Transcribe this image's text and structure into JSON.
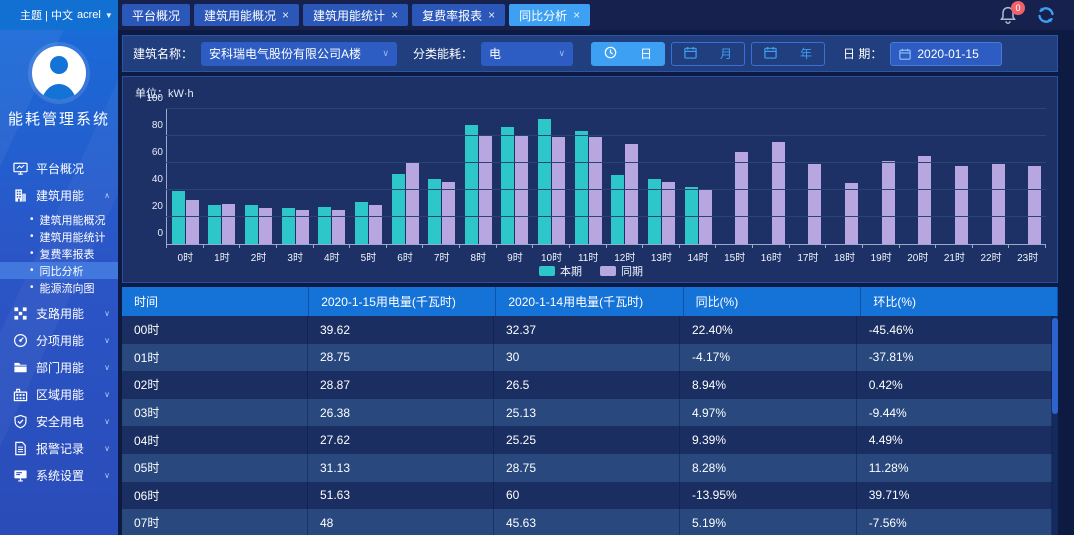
{
  "topbar": {
    "theme_label": "主题 | 中文",
    "user_label": "acrel",
    "bell_badge": "0",
    "tabs": [
      {
        "label": "平台概况",
        "closable": false,
        "active": false
      },
      {
        "label": "建筑用能概况",
        "closable": true,
        "active": false
      },
      {
        "label": "建筑用能统计",
        "closable": true,
        "active": false
      },
      {
        "label": "复费率报表",
        "closable": true,
        "active": false
      },
      {
        "label": "同比分析",
        "closable": true,
        "active": true
      }
    ]
  },
  "sidebar": {
    "title": "能耗管理系统",
    "menu": [
      {
        "label": "平台概况",
        "icon": "monitor-icon",
        "chevron": "none"
      },
      {
        "label": "建筑用能",
        "icon": "building-icon",
        "chevron": "up",
        "children": [
          {
            "label": "建筑用能概况",
            "active": false
          },
          {
            "label": "建筑用能统计",
            "active": false
          },
          {
            "label": "复费率报表",
            "active": false
          },
          {
            "label": "同比分析",
            "active": true
          },
          {
            "label": "能源流向图",
            "active": false
          }
        ]
      },
      {
        "label": "支路用能",
        "icon": "branch-icon",
        "chevron": "down"
      },
      {
        "label": "分项用能",
        "icon": "gauge-icon",
        "chevron": "down"
      },
      {
        "label": "部门用能",
        "icon": "folder-icon",
        "chevron": "down"
      },
      {
        "label": "区域用能",
        "icon": "factory-icon",
        "chevron": "down"
      },
      {
        "label": "安全用电",
        "icon": "shield-icon",
        "chevron": "down"
      },
      {
        "label": "报警记录",
        "icon": "document-icon",
        "chevron": "down"
      },
      {
        "label": "系统设置",
        "icon": "settings-icon",
        "chevron": "down"
      }
    ]
  },
  "filters": {
    "building_label": "建筑名称：",
    "building_value": "安科瑞电气股份有限公司A楼",
    "energy_label": "分类能耗：",
    "energy_value": "电",
    "period_buttons": [
      {
        "label": "日",
        "icon": "clock-icon",
        "active": true
      },
      {
        "label": "月",
        "icon": "calendar-icon",
        "active": false
      },
      {
        "label": "年",
        "icon": "calendar-icon",
        "active": false
      }
    ],
    "date_label": "日 期：",
    "date_value": "2020-01-15"
  },
  "chart_data": {
    "type": "bar",
    "unit_label": "单位：kW·h",
    "categories": [
      "0时",
      "1时",
      "2时",
      "3时",
      "4时",
      "5时",
      "6时",
      "7时",
      "8时",
      "9时",
      "10时",
      "11时",
      "12时",
      "13时",
      "14时",
      "15时",
      "16时",
      "17时",
      "18时",
      "19时",
      "20时",
      "21时",
      "22时",
      "23时"
    ],
    "series": [
      {
        "name": "本期",
        "color": "#2ec7c9",
        "values": [
          39.62,
          28.75,
          28.87,
          26.38,
          27.62,
          31.13,
          51.63,
          48,
          88,
          86.5,
          92.5,
          84,
          51,
          48,
          42.5
        ]
      },
      {
        "name": "同期",
        "color": "#b7a6e0",
        "values": [
          32.37,
          30,
          26.5,
          25.13,
          25.25,
          28.75,
          60,
          45.63,
          80,
          80,
          79.5,
          79,
          74,
          46,
          41,
          68.5,
          75.5,
          59.5,
          45.5,
          61.5,
          65,
          57.5,
          59.5,
          57.5
        ]
      }
    ],
    "ylim": [
      0,
      100
    ],
    "yticks": [
      0,
      20,
      40,
      60,
      80,
      100
    ],
    "grid": true,
    "legend_position": "bottom"
  },
  "table": {
    "columns": [
      "时间",
      "2020-1-15用电量(千瓦时)",
      "2020-1-14用电量(千瓦时)",
      "同比(%)",
      "环比(%)"
    ],
    "rows": [
      [
        "00时",
        "39.62",
        "32.37",
        "22.40%",
        "-45.46%"
      ],
      [
        "01时",
        "28.75",
        "30",
        "-4.17%",
        "-37.81%"
      ],
      [
        "02时",
        "28.87",
        "26.5",
        "8.94%",
        "0.42%"
      ],
      [
        "03时",
        "26.38",
        "25.13",
        "4.97%",
        "-9.44%"
      ],
      [
        "04时",
        "27.62",
        "25.25",
        "9.39%",
        "4.49%"
      ],
      [
        "05时",
        "31.13",
        "28.75",
        "8.28%",
        "11.28%"
      ],
      [
        "06时",
        "51.63",
        "60",
        "-13.95%",
        "39.71%"
      ],
      [
        "07时",
        "48",
        "45.63",
        "5.19%",
        "-7.56%"
      ]
    ]
  }
}
